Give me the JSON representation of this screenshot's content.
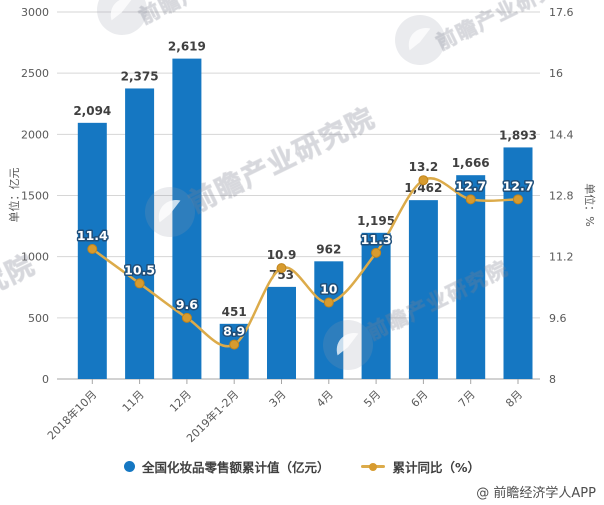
{
  "watermark": {
    "text": "前瞻产业研究院",
    "footer": "@ 前瞻经济学人APP"
  },
  "chart_data": {
    "type": "bar+line combo",
    "categories": [
      "2018年10月",
      "11月",
      "12月",
      "2019年1-2月",
      "3月",
      "4月",
      "5月",
      "6月",
      "7月",
      "8月"
    ],
    "series": [
      {
        "name": "全国化妆品零售额累计值（亿元）",
        "type": "bar",
        "axis": "left",
        "color": "#1577c2",
        "values": [
          2094,
          2375,
          2619,
          451,
          753,
          962,
          1195,
          1462,
          1666,
          1893
        ],
        "labels": [
          "2,094",
          "2,375",
          "2,619",
          "451",
          "753",
          "962",
          "1,195",
          "1,462",
          "1,666",
          "1,893"
        ]
      },
      {
        "name": "累计同比（%）",
        "type": "line",
        "axis": "right",
        "color": "#dcab4a",
        "marker_color": "#d79b2f",
        "values": [
          11.4,
          10.5,
          9.6,
          8.9,
          10.9,
          10,
          11.3,
          13.2,
          12.7,
          12.7
        ],
        "labels": [
          "11.4",
          "10.5",
          "9.6",
          "8.9",
          "10.9",
          "10",
          "11.3",
          "13.2",
          "12.7",
          "12.7"
        ]
      }
    ],
    "left_axis": {
      "title": "单位：亿元",
      "min": 0,
      "max": 3000,
      "ticks": [
        0,
        500,
        1000,
        1500,
        2000,
        2500,
        3000
      ],
      "labels": [
        "0",
        "500",
        "1000",
        "1500",
        "2000",
        "2500",
        "3000"
      ]
    },
    "right_axis": {
      "title": "单位：%",
      "min": 8,
      "max": 17.6,
      "ticks": [
        8,
        9.6,
        11.2,
        12.8,
        14.4,
        16,
        17.6
      ],
      "labels": [
        "8",
        "9.6",
        "11.2",
        "12.8",
        "14.4",
        "16",
        "17.6"
      ]
    },
    "legend": [
      {
        "label": "全国化妆品零售额累计值（亿元）",
        "marker": "circle"
      },
      {
        "label": "累计同比（%）",
        "marker": "line-dot"
      }
    ],
    "grid": true,
    "legend_position": "bottom-center"
  }
}
